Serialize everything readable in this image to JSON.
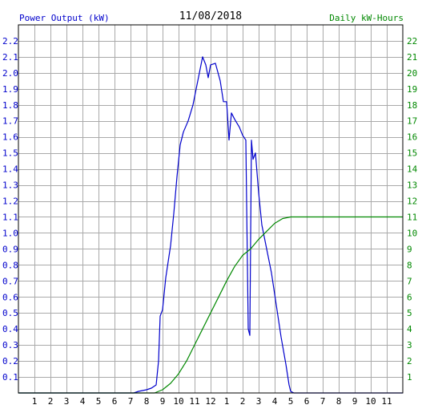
{
  "chart_data": {
    "type": "line",
    "title": "11/08/2018",
    "left_axis_label": "Power Output (kW)",
    "right_axis_label": "Daily kW-Hours",
    "x_tick_labels": [
      "1",
      "2",
      "3",
      "4",
      "5",
      "6",
      "7",
      "8",
      "9",
      "10",
      "11",
      "12",
      "1",
      "2",
      "3",
      "4",
      "5",
      "6",
      "7",
      "8",
      "9",
      "10",
      "11"
    ],
    "x_range_hours": [
      0,
      24
    ],
    "left_ylim": [
      0,
      2.3
    ],
    "left_ticks": [
      "0.1",
      "0.2",
      "0.3",
      "0.4",
      "0.5",
      "0.6",
      "0.7",
      "0.8",
      "0.9",
      "1.0",
      "1.1",
      "1.2",
      "1.3",
      "1.4",
      "1.5",
      "1.6",
      "1.7",
      "1.8",
      "1.9",
      "2.0",
      "2.1",
      "2.2"
    ],
    "right_ylim": [
      0,
      23
    ],
    "right_ticks": [
      "1",
      "2",
      "3",
      "4",
      "5",
      "6",
      "7",
      "8",
      "9",
      "10",
      "11",
      "12",
      "13",
      "14",
      "15",
      "16",
      "17",
      "18",
      "19",
      "20",
      "21",
      "22"
    ],
    "grid": true,
    "series": [
      {
        "name": "Power Output (kW)",
        "color": "#0000cc",
        "axis": "left",
        "points": [
          [
            0,
            0
          ],
          [
            7.2,
            0
          ],
          [
            7.5,
            0.01
          ],
          [
            8.0,
            0.02
          ],
          [
            8.3,
            0.03
          ],
          [
            8.6,
            0.05
          ],
          [
            8.75,
            0.2
          ],
          [
            8.85,
            0.48
          ],
          [
            9.0,
            0.52
          ],
          [
            9.2,
            0.72
          ],
          [
            9.5,
            0.92
          ],
          [
            9.7,
            1.12
          ],
          [
            9.9,
            1.35
          ],
          [
            10.1,
            1.55
          ],
          [
            10.3,
            1.63
          ],
          [
            10.6,
            1.7
          ],
          [
            10.9,
            1.8
          ],
          [
            11.1,
            1.9
          ],
          [
            11.3,
            2.0
          ],
          [
            11.5,
            2.1
          ],
          [
            11.7,
            2.05
          ],
          [
            11.85,
            1.97
          ],
          [
            12.0,
            2.05
          ],
          [
            12.3,
            2.06
          ],
          [
            12.6,
            1.95
          ],
          [
            12.8,
            1.82
          ],
          [
            13.0,
            1.82
          ],
          [
            13.15,
            1.58
          ],
          [
            13.3,
            1.75
          ],
          [
            13.5,
            1.71
          ],
          [
            13.8,
            1.66
          ],
          [
            14.0,
            1.61
          ],
          [
            14.2,
            1.58
          ],
          [
            14.35,
            0.4
          ],
          [
            14.45,
            0.36
          ],
          [
            14.55,
            1.58
          ],
          [
            14.65,
            1.46
          ],
          [
            14.8,
            1.5
          ],
          [
            15.0,
            1.25
          ],
          [
            15.2,
            1.05
          ],
          [
            15.5,
            0.9
          ],
          [
            15.8,
            0.75
          ],
          [
            16.1,
            0.55
          ],
          [
            16.4,
            0.35
          ],
          [
            16.7,
            0.18
          ],
          [
            16.9,
            0.05
          ],
          [
            17.0,
            0.01
          ],
          [
            17.2,
            0
          ],
          [
            24,
            0
          ]
        ]
      },
      {
        "name": "Daily kW-Hours",
        "color": "#008800",
        "axis": "right",
        "points": [
          [
            0,
            0
          ],
          [
            8.5,
            0
          ],
          [
            9.0,
            0.2
          ],
          [
            9.5,
            0.6
          ],
          [
            10.0,
            1.2
          ],
          [
            10.5,
            2.0
          ],
          [
            11.0,
            3.0
          ],
          [
            11.5,
            4.0
          ],
          [
            12.0,
            5.0
          ],
          [
            12.5,
            6.0
          ],
          [
            13.0,
            7.0
          ],
          [
            13.5,
            7.9
          ],
          [
            14.0,
            8.6
          ],
          [
            14.5,
            9.0
          ],
          [
            15.0,
            9.6
          ],
          [
            15.5,
            10.1
          ],
          [
            16.0,
            10.6
          ],
          [
            16.5,
            10.9
          ],
          [
            17.0,
            11.0
          ],
          [
            24,
            11.0
          ]
        ]
      }
    ]
  }
}
